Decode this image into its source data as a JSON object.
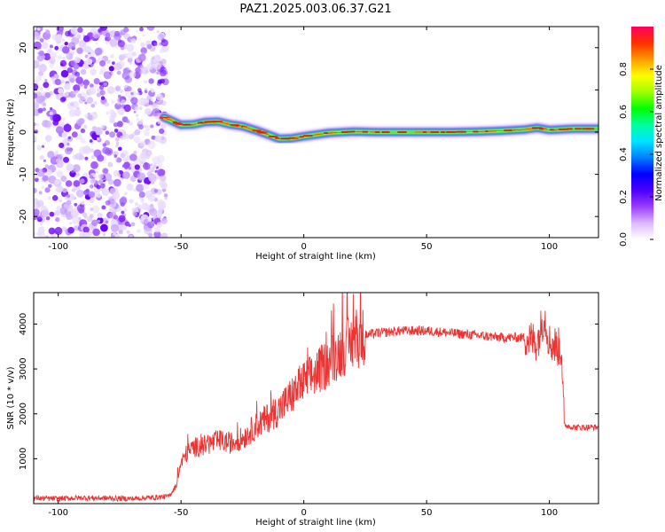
{
  "title": "PAZ1.2025.003.06.37.G21",
  "chart_data": [
    {
      "type": "heatmap",
      "xlabel": "Height of straight line (km)",
      "ylabel": "Frequency (Hz)",
      "xlim": [
        -110,
        120
      ],
      "ylim": [
        -25,
        25
      ],
      "x_ticks": [
        -100,
        -50,
        0,
        50,
        100
      ],
      "y_ticks": [
        -20,
        -10,
        0,
        10,
        20
      ],
      "noise_region_x": [
        -110,
        -56
      ],
      "ridge": {
        "x": [
          -57,
          -55,
          -50,
          -45,
          -40,
          -35,
          -30,
          -25,
          -20,
          -15,
          -10,
          -5,
          0,
          10,
          20,
          30,
          40,
          50,
          60,
          70,
          80,
          90,
          95,
          100,
          110,
          120
        ],
        "frequency": [
          3.5,
          3.0,
          1.7,
          1.8,
          2.4,
          2.5,
          1.8,
          1.4,
          0.5,
          -0.5,
          -1.6,
          -1.5,
          -1.0,
          -0.2,
          0.1,
          0.0,
          0.0,
          0.0,
          0.0,
          0.1,
          0.3,
          0.6,
          1.0,
          0.5,
          0.8,
          0.8
        ]
      },
      "colorbar": {
        "label": "Normalized spectral amplitude",
        "range": [
          0,
          1
        ],
        "ticks": [
          "0.0",
          "0.2",
          "0.4",
          "0.6",
          "0.8"
        ],
        "colors": [
          "#ffffff",
          "#dcb8ff",
          "#9a3cff",
          "#4b00ff",
          "#0000ff",
          "#0080ff",
          "#00e5ff",
          "#00ffa0",
          "#00ff00",
          "#a0ff00",
          "#ffff00",
          "#ff9a00",
          "#ff3000",
          "#ff0060"
        ]
      }
    },
    {
      "type": "line",
      "xlabel": "Height of straight line (km)",
      "ylabel": "SNR (10 * v/v)",
      "xlim": [
        -110,
        120
      ],
      "ylim": [
        0,
        4700
      ],
      "x_ticks": [
        -100,
        -50,
        0,
        50,
        100
      ],
      "y_ticks": [
        1000,
        2000,
        3000,
        4000
      ],
      "line_color": "#ee3333",
      "series": [
        {
          "x": [
            -110,
            -100,
            -90,
            -80,
            -70,
            -60,
            -55,
            -52,
            -50,
            -48,
            -45,
            -40,
            -35,
            -30,
            -25,
            -20,
            -15,
            -10,
            -5,
            0,
            5,
            10,
            15,
            20,
            25,
            30,
            40,
            50,
            60,
            70,
            80,
            90,
            95,
            98,
            100,
            103,
            105,
            106,
            110,
            120
          ],
          "values": [
            120,
            110,
            130,
            120,
            110,
            140,
            160,
            400,
            900,
            1100,
            1250,
            1300,
            1400,
            1350,
            1450,
            1700,
            1900,
            2100,
            2400,
            2700,
            2900,
            3150,
            3400,
            3600,
            3750,
            3800,
            3850,
            3850,
            3800,
            3750,
            3700,
            3700,
            3600,
            4200,
            3600,
            3500,
            3450,
            1750,
            1700,
            1700
          ]
        }
      ]
    }
  ]
}
